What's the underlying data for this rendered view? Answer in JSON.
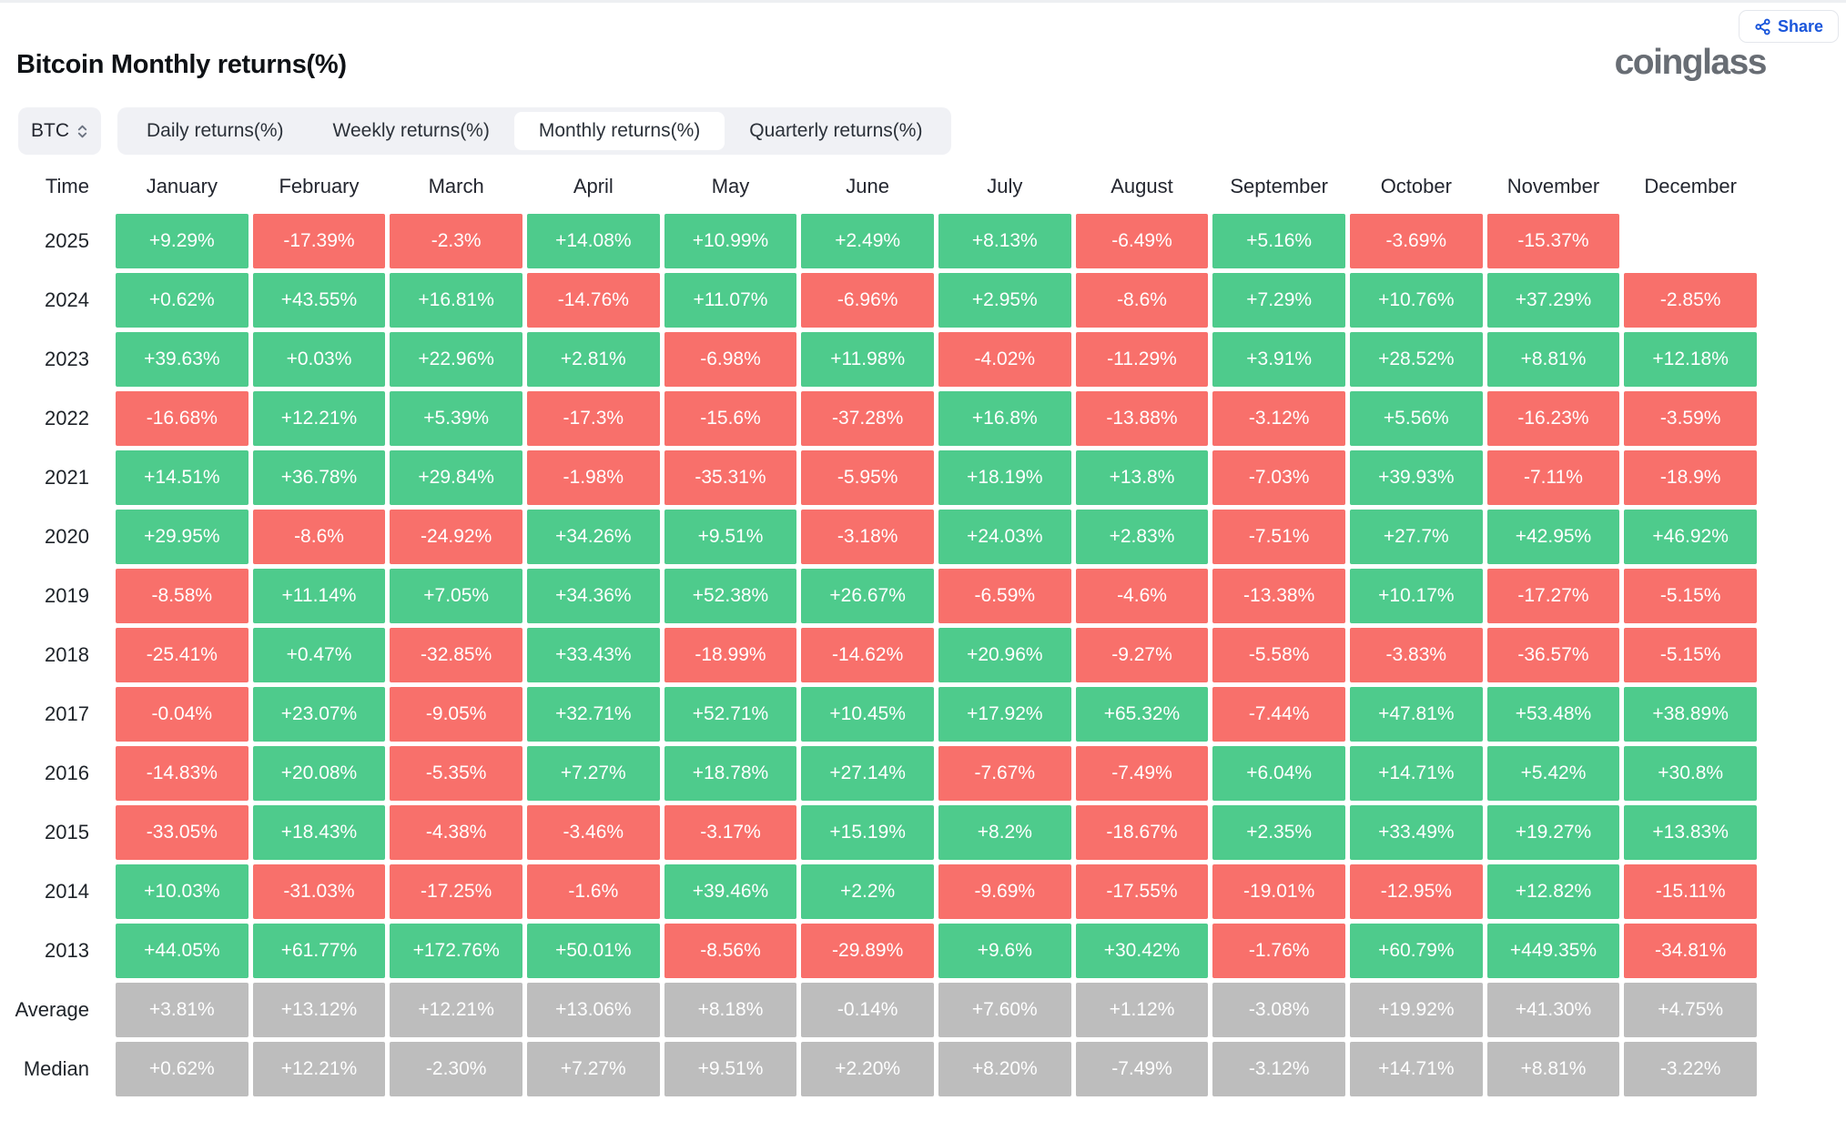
{
  "header": {
    "title": "Bitcoin Monthly returns(%)",
    "logo": "coinglass",
    "share_label": "Share"
  },
  "controls": {
    "symbol": "BTC",
    "tabs": {
      "items": [
        {
          "label": "Daily returns(%)",
          "active": false
        },
        {
          "label": "Weekly returns(%)",
          "active": false
        },
        {
          "label": "Monthly returns(%)",
          "active": true
        },
        {
          "label": "Quarterly returns(%)",
          "active": false
        }
      ]
    }
  },
  "colors": {
    "positive": "#4ecb8c",
    "negative": "#f8706b",
    "summary": "#bdbdbd",
    "accent_blue": "#1a56db"
  },
  "table": {
    "columns": [
      "Time",
      "January",
      "February",
      "March",
      "April",
      "May",
      "June",
      "July",
      "August",
      "September",
      "October",
      "November",
      "December"
    ],
    "rows": [
      {
        "label": "2025",
        "summary": false,
        "values": [
          "+9.29%",
          "-17.39%",
          "-2.3%",
          "+14.08%",
          "+10.99%",
          "+2.49%",
          "+8.13%",
          "-6.49%",
          "+5.16%",
          "-3.69%",
          "-15.37%",
          ""
        ]
      },
      {
        "label": "2024",
        "summary": false,
        "values": [
          "+0.62%",
          "+43.55%",
          "+16.81%",
          "-14.76%",
          "+11.07%",
          "-6.96%",
          "+2.95%",
          "-8.6%",
          "+7.29%",
          "+10.76%",
          "+37.29%",
          "-2.85%"
        ]
      },
      {
        "label": "2023",
        "summary": false,
        "values": [
          "+39.63%",
          "+0.03%",
          "+22.96%",
          "+2.81%",
          "-6.98%",
          "+11.98%",
          "-4.02%",
          "-11.29%",
          "+3.91%",
          "+28.52%",
          "+8.81%",
          "+12.18%"
        ]
      },
      {
        "label": "2022",
        "summary": false,
        "values": [
          "-16.68%",
          "+12.21%",
          "+5.39%",
          "-17.3%",
          "-15.6%",
          "-37.28%",
          "+16.8%",
          "-13.88%",
          "-3.12%",
          "+5.56%",
          "-16.23%",
          "-3.59%"
        ]
      },
      {
        "label": "2021",
        "summary": false,
        "values": [
          "+14.51%",
          "+36.78%",
          "+29.84%",
          "-1.98%",
          "-35.31%",
          "-5.95%",
          "+18.19%",
          "+13.8%",
          "-7.03%",
          "+39.93%",
          "-7.11%",
          "-18.9%"
        ]
      },
      {
        "label": "2020",
        "summary": false,
        "values": [
          "+29.95%",
          "-8.6%",
          "-24.92%",
          "+34.26%",
          "+9.51%",
          "-3.18%",
          "+24.03%",
          "+2.83%",
          "-7.51%",
          "+27.7%",
          "+42.95%",
          "+46.92%"
        ]
      },
      {
        "label": "2019",
        "summary": false,
        "values": [
          "-8.58%",
          "+11.14%",
          "+7.05%",
          "+34.36%",
          "+52.38%",
          "+26.67%",
          "-6.59%",
          "-4.6%",
          "-13.38%",
          "+10.17%",
          "-17.27%",
          "-5.15%"
        ]
      },
      {
        "label": "2018",
        "summary": false,
        "values": [
          "-25.41%",
          "+0.47%",
          "-32.85%",
          "+33.43%",
          "-18.99%",
          "-14.62%",
          "+20.96%",
          "-9.27%",
          "-5.58%",
          "-3.83%",
          "-36.57%",
          "-5.15%"
        ]
      },
      {
        "label": "2017",
        "summary": false,
        "values": [
          "-0.04%",
          "+23.07%",
          "-9.05%",
          "+32.71%",
          "+52.71%",
          "+10.45%",
          "+17.92%",
          "+65.32%",
          "-7.44%",
          "+47.81%",
          "+53.48%",
          "+38.89%"
        ]
      },
      {
        "label": "2016",
        "summary": false,
        "values": [
          "-14.83%",
          "+20.08%",
          "-5.35%",
          "+7.27%",
          "+18.78%",
          "+27.14%",
          "-7.67%",
          "-7.49%",
          "+6.04%",
          "+14.71%",
          "+5.42%",
          "+30.8%"
        ]
      },
      {
        "label": "2015",
        "summary": false,
        "values": [
          "-33.05%",
          "+18.43%",
          "-4.38%",
          "-3.46%",
          "-3.17%",
          "+15.19%",
          "+8.2%",
          "-18.67%",
          "+2.35%",
          "+33.49%",
          "+19.27%",
          "+13.83%"
        ]
      },
      {
        "label": "2014",
        "summary": false,
        "values": [
          "+10.03%",
          "-31.03%",
          "-17.25%",
          "-1.6%",
          "+39.46%",
          "+2.2%",
          "-9.69%",
          "-17.55%",
          "-19.01%",
          "-12.95%",
          "+12.82%",
          "-15.11%"
        ]
      },
      {
        "label": "2013",
        "summary": false,
        "values": [
          "+44.05%",
          "+61.77%",
          "+172.76%",
          "+50.01%",
          "-8.56%",
          "-29.89%",
          "+9.6%",
          "+30.42%",
          "-1.76%",
          "+60.79%",
          "+449.35%",
          "-34.81%"
        ]
      },
      {
        "label": "Average",
        "summary": true,
        "values": [
          "+3.81%",
          "+13.12%",
          "+12.21%",
          "+13.06%",
          "+8.18%",
          "-0.14%",
          "+7.60%",
          "+1.12%",
          "-3.08%",
          "+19.92%",
          "+41.30%",
          "+4.75%"
        ]
      },
      {
        "label": "Median",
        "summary": true,
        "values": [
          "+0.62%",
          "+12.21%",
          "-2.30%",
          "+7.27%",
          "+9.51%",
          "+2.20%",
          "+8.20%",
          "-7.49%",
          "-3.12%",
          "+14.71%",
          "+8.81%",
          "-3.22%"
        ]
      }
    ]
  }
}
